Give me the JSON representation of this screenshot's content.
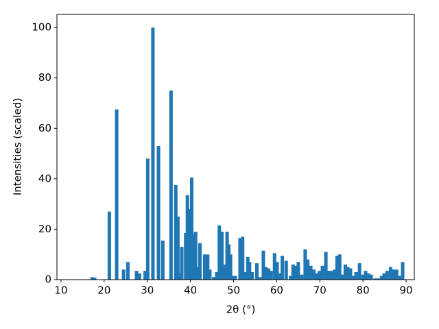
{
  "chart_data": {
    "type": "bar",
    "xlabel": "2θ (°)",
    "ylabel": "Intensities (scaled)",
    "color": "#1f77b4",
    "xlim": [
      9.05,
      91.9
    ],
    "ylim": [
      0,
      105.2
    ],
    "xticks": [
      10,
      20,
      30,
      40,
      50,
      60,
      70,
      80,
      90
    ],
    "yticks": [
      0,
      20,
      40,
      60,
      80,
      100
    ],
    "x": [
      17.2,
      17.8,
      21.2,
      22.9,
      24.5,
      25.5,
      27.5,
      28.2,
      29.5,
      30.1,
      31.3,
      32.6,
      33.6,
      35.5,
      36.6,
      37.1,
      37.6,
      38.0,
      38.9,
      39.3,
      39.7,
      40.3,
      40.7,
      41.2,
      41.7,
      42.2,
      43.3,
      44.0,
      44.5,
      45.4,
      46.1,
      46.7,
      47.3,
      47.9,
      48.5,
      48.9,
      49.3,
      49.8,
      50.4,
      51.5,
      52.1,
      52.8,
      53.3,
      53.7,
      54.3,
      55.4,
      56.1,
      56.9,
      57.5,
      58.1,
      58.7,
      59.5,
      60.1,
      60.7,
      61.3,
      62.2,
      63.2,
      63.8,
      64.4,
      65.0,
      65.8,
      66.6,
      67.2,
      67.9,
      68.6,
      69.3,
      69.9,
      70.6,
      71.4,
      72.1,
      72.7,
      73.4,
      74.0,
      74.6,
      75.3,
      75.9,
      76.5,
      77.1,
      77.8,
      78.4,
      79.2,
      80.0,
      80.6,
      81.3,
      81.9,
      82.8,
      83.5,
      84.3,
      84.9,
      85.6,
      86.4,
      87.1,
      87.8,
      88.5,
      89.2
    ],
    "values": [
      1,
      0.8,
      27,
      67.5,
      4,
      7,
      3.5,
      2.5,
      3.5,
      48,
      100,
      53,
      15.5,
      75,
      37.5,
      25,
      2.5,
      13,
      18.5,
      33.5,
      28,
      40.5,
      18,
      19,
      5,
      14.5,
      10,
      10,
      4,
      1,
      3,
      21.5,
      19,
      6,
      19,
      14,
      10,
      1.5,
      1.5,
      16.5,
      17,
      3,
      9,
      7,
      3,
      6.5,
      1,
      11.5,
      5,
      4.5,
      3.5,
      10.5,
      7,
      2.5,
      9.5,
      7.5,
      1.5,
      6,
      5.5,
      7,
      2,
      12,
      8,
      5.5,
      4,
      2.5,
      3.5,
      5.5,
      11,
      3.5,
      3.5,
      4,
      9.5,
      10,
      2,
      6,
      5,
      4.5,
      1.5,
      3,
      6.5,
      2,
      3.5,
      2.5,
      2,
      0.5,
      0.5,
      1.5,
      2.5,
      3.5,
      5,
      4,
      4,
      1.5,
      7
    ]
  }
}
